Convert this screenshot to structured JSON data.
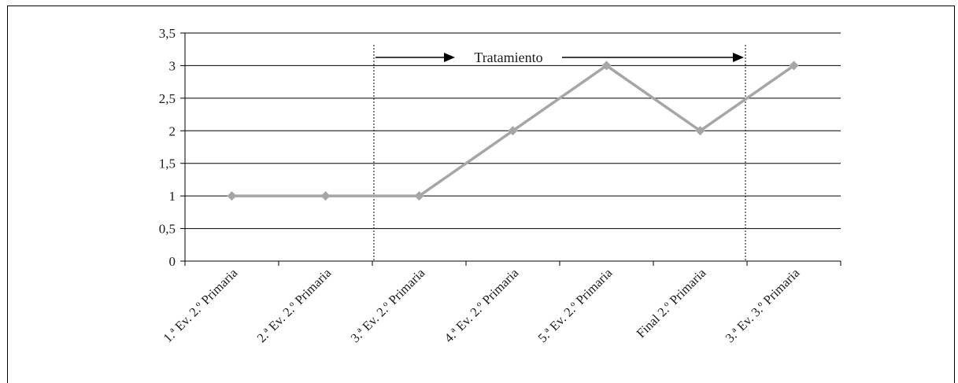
{
  "chart_data": {
    "type": "line",
    "title": "",
    "xlabel": "",
    "ylabel": "",
    "categories": [
      "1.ª Ev. 2.º Primaria",
      "2.ª Ev. 2.º Primaria",
      "3.ª Ev. 2.º Primaria",
      "4.ª Ev. 2.º Primaria",
      "5.ª Ev. 2.º Primaria",
      "Final 2.º Primaria",
      "3.ª Ev. 3.º Primaria"
    ],
    "series": [
      {
        "values": [
          1,
          1,
          1,
          2,
          3,
          2,
          3
        ],
        "color": "#a6a6a6"
      }
    ],
    "ylim": [
      0,
      3.5
    ],
    "yticks": [
      "0",
      "0,5",
      "1",
      "1,5",
      "2",
      "2,5",
      "3",
      "3,5"
    ],
    "grid": true,
    "legend": "none",
    "annotations": [
      {
        "text": "Tratamiento",
        "phase_start_between": [
          1,
          2
        ],
        "phase_end_between": [
          5,
          6
        ],
        "style": "dotted vertical lines with arrows"
      }
    ]
  }
}
